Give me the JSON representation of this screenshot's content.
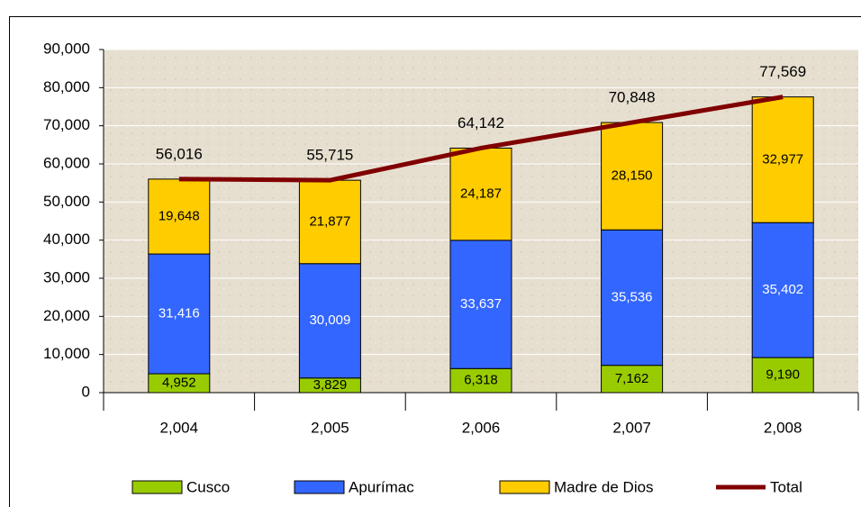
{
  "chart_data": {
    "type": "bar",
    "stacked": true,
    "categories": [
      "2,004",
      "2,005",
      "2,006",
      "2,007",
      "2,008"
    ],
    "series": [
      {
        "name": "Cusco",
        "color": "#99cc00",
        "values": [
          4952,
          3829,
          6318,
          7162,
          9190
        ],
        "value_labels": [
          "4,952",
          "3,829",
          "6,318",
          "7,162",
          "9,190"
        ]
      },
      {
        "name": "Apurímac",
        "color": "#3366ff",
        "values": [
          31416,
          30009,
          33637,
          35536,
          35402
        ],
        "value_labels": [
          "31,416",
          "30,009",
          "33,637",
          "35,536",
          "35,402"
        ]
      },
      {
        "name": "Madre de Dios",
        "color": "#ffcc00",
        "values": [
          19648,
          21877,
          24187,
          28150,
          32977
        ],
        "value_labels": [
          "19,648",
          "21,877",
          "24,187",
          "28,150",
          "32,977"
        ]
      },
      {
        "name": "Total",
        "type": "line",
        "color": "#800000",
        "values": [
          56016,
          55715,
          64142,
          70848,
          77569
        ],
        "value_labels": [
          "56,016",
          "55,715",
          "64,142",
          "70,848",
          "77,569"
        ]
      }
    ],
    "ylim": [
      0,
      90000
    ],
    "yticks": [
      0,
      {
        "value": 10000,
        "label": "10,000"
      },
      {
        "value": 20000,
        "label": "20,000"
      },
      {
        "value": 30000,
        "label": "30,000"
      },
      {
        "value": 40000,
        "label": "40,000"
      },
      {
        "value": 50000,
        "label": "50,000"
      },
      {
        "value": 60000,
        "label": "60,000"
      },
      {
        "value": 70000,
        "label": "70,000"
      },
      {
        "value": 80000,
        "label": "80,000"
      },
      {
        "value": 90000,
        "label": "90,000"
      }
    ],
    "grid": true,
    "legend": "bottom"
  }
}
